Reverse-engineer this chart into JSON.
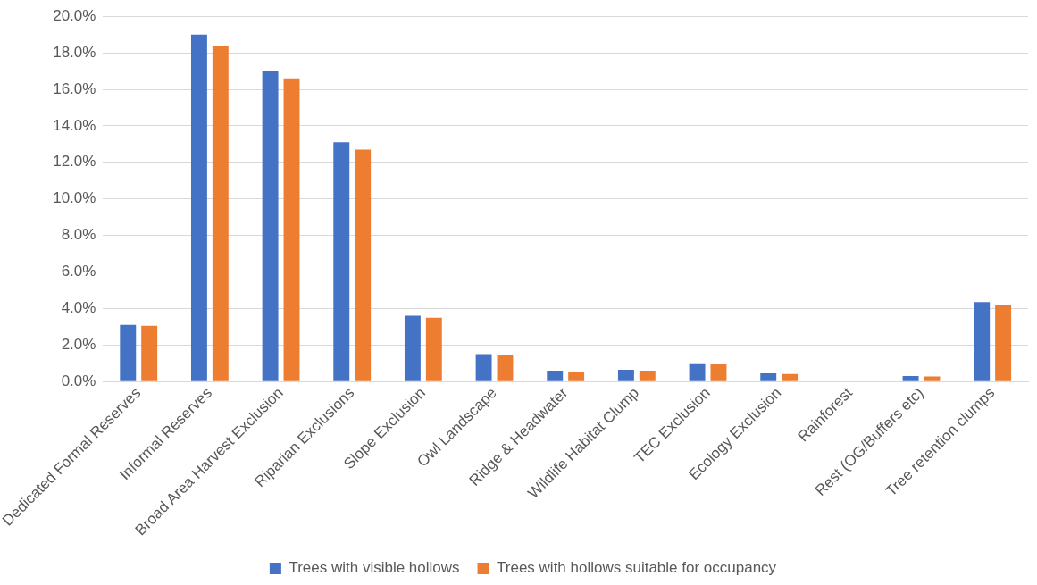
{
  "chart_data": {
    "type": "bar",
    "categories": [
      "Dedicated Formal Reserves",
      "Informal Reserves",
      "Broad Area Harvest Exclusion",
      "Riparian Exclusions",
      "Slope Exclusion",
      "Owl Landscape",
      "Ridge & Headwater",
      "Wildlife Habitat Clump",
      "TEC Exclusion",
      "Ecology Exclusion",
      "Rainforest",
      "Rest (OG/Buffers etc)",
      "Tree retention clumps"
    ],
    "series": [
      {
        "name": "Trees with visible hollows",
        "color": "#4472c4",
        "values": [
          3.1,
          19.0,
          17.0,
          13.1,
          3.6,
          1.5,
          0.6,
          0.65,
          1.0,
          0.45,
          0,
          0.3,
          4.35
        ]
      },
      {
        "name": "Trees with hollows suitable for occupancy",
        "color": "#ed7d31",
        "values": [
          3.05,
          18.4,
          16.6,
          12.7,
          3.5,
          1.45,
          0.55,
          0.6,
          0.95,
          0.42,
          0,
          0.28,
          4.2
        ]
      }
    ],
    "ylim": [
      0,
      20
    ],
    "yticks": [
      {
        "value": 0,
        "label": "0.0%"
      },
      {
        "value": 2,
        "label": "2.0%"
      },
      {
        "value": 4,
        "label": "4.0%"
      },
      {
        "value": 6,
        "label": "6.0%"
      },
      {
        "value": 8,
        "label": "8.0%"
      },
      {
        "value": 10,
        "label": "10.0%"
      },
      {
        "value": 12,
        "label": "12.0%"
      },
      {
        "value": 14,
        "label": "14.0%"
      },
      {
        "value": 16,
        "label": "16.0%"
      },
      {
        "value": 18,
        "label": "18.0%"
      },
      {
        "value": 20,
        "label": "20.0%"
      }
    ],
    "grid": "y",
    "legend": "bottom"
  }
}
